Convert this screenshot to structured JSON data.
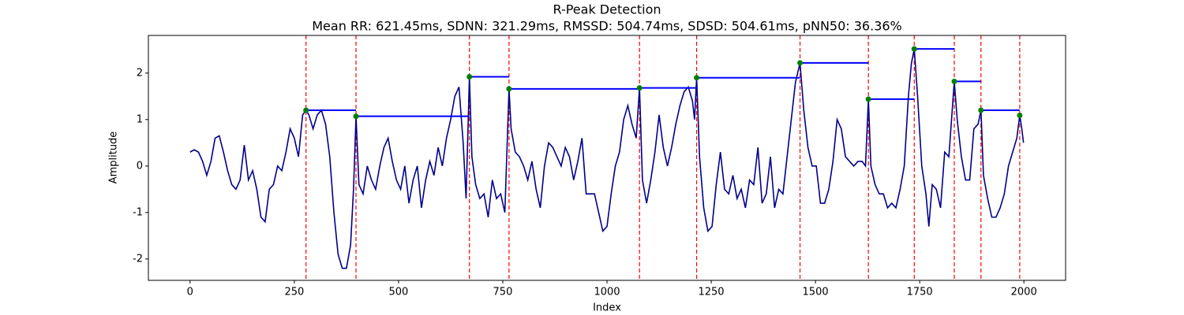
{
  "chart_data": {
    "type": "line",
    "title": "R-Peak Detection",
    "subtitle": "Mean RR: 621.45ms, SDNN: 321.29ms, RMSSD: 504.74ms, SDSD: 504.61ms, pNN50: 36.36%",
    "x_label": "Index",
    "y_label": "Amplitude",
    "xlim": [
      -100,
      2100
    ],
    "ylim": [
      -2.46,
      2.81
    ],
    "xticks": [
      0,
      250,
      500,
      750,
      1000,
      1250,
      1500,
      1750,
      2000
    ],
    "yticks": [
      -2,
      -1,
      0,
      1,
      2
    ],
    "x": [
      0,
      10,
      20,
      30,
      40,
      50,
      60,
      70,
      80,
      90,
      100,
      110,
      120,
      130,
      140,
      150,
      160,
      170,
      180,
      190,
      200,
      210,
      220,
      230,
      240,
      250,
      260,
      270,
      278,
      285,
      295,
      305,
      315,
      325,
      335,
      345,
      355,
      365,
      375,
      385,
      392,
      398,
      405,
      415,
      425,
      435,
      445,
      455,
      465,
      475,
      485,
      495,
      505,
      515,
      525,
      535,
      545,
      555,
      565,
      575,
      585,
      595,
      605,
      615,
      625,
      635,
      645,
      655,
      662,
      670,
      676,
      685,
      695,
      705,
      715,
      725,
      735,
      745,
      755,
      765,
      770,
      780,
      790,
      800,
      810,
      820,
      830,
      840,
      850,
      860,
      870,
      880,
      890,
      900,
      910,
      920,
      930,
      940,
      950,
      960,
      970,
      980,
      990,
      1000,
      1010,
      1020,
      1030,
      1040,
      1050,
      1060,
      1070,
      1078,
      1085,
      1095,
      1105,
      1115,
      1125,
      1135,
      1145,
      1155,
      1165,
      1175,
      1185,
      1195,
      1205,
      1210,
      1215,
      1222,
      1232,
      1242,
      1252,
      1262,
      1272,
      1282,
      1292,
      1302,
      1312,
      1322,
      1332,
      1342,
      1352,
      1362,
      1372,
      1382,
      1392,
      1402,
      1412,
      1422,
      1432,
      1442,
      1452,
      1463,
      1472,
      1482,
      1492,
      1502,
      1512,
      1522,
      1532,
      1542,
      1552,
      1562,
      1572,
      1582,
      1592,
      1602,
      1612,
      1620,
      1627,
      1633,
      1643,
      1653,
      1663,
      1673,
      1683,
      1693,
      1703,
      1713,
      1723,
      1730,
      1737,
      1745,
      1755,
      1765,
      1772,
      1780,
      1790,
      1800,
      1810,
      1820,
      1833,
      1840,
      1850,
      1860,
      1870,
      1880,
      1890,
      1897,
      1903,
      1913,
      1923,
      1933,
      1943,
      1953,
      1963,
      1973,
      1983,
      1990,
      1995,
      1999
    ],
    "series": [
      {
        "color": "#00008b",
        "values": [
          0.3,
          0.35,
          0.3,
          0.1,
          -0.2,
          0.1,
          0.6,
          0.65,
          0.3,
          -0.1,
          -0.4,
          -0.5,
          -0.3,
          0.45,
          -0.3,
          -0.1,
          -0.5,
          -1.1,
          -1.2,
          -0.5,
          -0.4,
          0.0,
          -0.1,
          0.3,
          0.8,
          0.6,
          0.2,
          1.1,
          1.2,
          1.1,
          0.8,
          1.1,
          1.2,
          0.9,
          0.2,
          -1.0,
          -1.9,
          -2.2,
          -2.2,
          -1.7,
          -0.5,
          1.07,
          -0.4,
          -0.6,
          0.0,
          -0.3,
          -0.5,
          0.0,
          0.4,
          0.6,
          0.1,
          -0.3,
          -0.5,
          0.0,
          -0.8,
          -0.3,
          0.0,
          -0.9,
          -0.3,
          0.1,
          -0.2,
          0.4,
          0.0,
          0.6,
          1.0,
          1.5,
          1.7,
          0.5,
          -0.7,
          1.92,
          0.2,
          -0.4,
          -0.7,
          -0.6,
          -1.1,
          -0.3,
          -0.7,
          -0.6,
          -1.0,
          1.66,
          0.8,
          0.3,
          0.2,
          0.0,
          -0.3,
          0.1,
          -0.5,
          -0.9,
          0.0,
          0.5,
          0.4,
          0.2,
          0.0,
          0.4,
          0.2,
          -0.3,
          0.1,
          0.6,
          -0.6,
          -0.6,
          -0.6,
          -1.0,
          -1.4,
          -1.3,
          -0.6,
          0.0,
          0.3,
          1.0,
          1.3,
          0.9,
          0.6,
          1.68,
          -0.3,
          -0.8,
          -0.3,
          0.3,
          1.1,
          0.4,
          0.0,
          0.4,
          0.9,
          1.3,
          1.6,
          1.7,
          1.4,
          1.0,
          1.9,
          0.2,
          -0.9,
          -1.4,
          -1.3,
          -0.4,
          0.3,
          -0.5,
          -0.6,
          -0.2,
          -0.7,
          -0.5,
          -0.9,
          -0.3,
          -0.4,
          0.4,
          -0.8,
          -0.6,
          0.2,
          -0.9,
          -0.5,
          -0.6,
          0.2,
          1.0,
          1.8,
          2.22,
          1.2,
          0.4,
          0.0,
          0.0,
          -0.8,
          -0.8,
          -0.5,
          0.1,
          1.0,
          0.8,
          0.2,
          0.1,
          0.0,
          0.1,
          0.1,
          0.0,
          1.44,
          0.0,
          -0.4,
          -0.6,
          -0.6,
          -0.9,
          -0.8,
          -0.9,
          -0.5,
          0.0,
          1.5,
          2.2,
          2.52,
          1.5,
          0.0,
          -0.6,
          -1.3,
          -0.4,
          -0.5,
          -0.9,
          0.3,
          0.2,
          1.82,
          1.0,
          0.2,
          -0.3,
          -0.3,
          0.8,
          0.9,
          1.2,
          -0.2,
          -0.7,
          -1.1,
          -1.1,
          -0.9,
          -0.6,
          0.0,
          0.3,
          0.6,
          1.09,
          0.8,
          0.5
        ]
      }
    ],
    "peaks": {
      "x": [
        278,
        398,
        670,
        765,
        1078,
        1215,
        1463,
        1627,
        1737,
        1833,
        1897,
        1990
      ],
      "values": [
        1.2,
        1.07,
        1.92,
        1.66,
        1.68,
        1.9,
        2.22,
        1.44,
        2.52,
        1.82,
        1.2,
        1.09
      ],
      "color": "green",
      "vline_color": "red",
      "hline_color": "blue"
    }
  }
}
